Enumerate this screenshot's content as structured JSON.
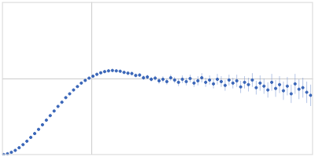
{
  "chart_data": {
    "type": "scatter",
    "x": [
      2,
      7,
      12,
      17,
      22,
      27,
      32,
      37,
      42,
      47,
      52,
      57,
      62,
      67,
      72,
      77,
      82,
      87,
      92,
      97,
      102,
      107,
      112,
      117,
      122,
      127,
      132,
      137,
      142,
      147,
      152,
      157,
      162,
      167,
      172,
      177,
      182,
      187,
      192,
      197,
      202,
      207,
      212,
      217,
      222,
      227,
      232,
      237,
      242,
      247,
      252,
      257,
      262,
      267,
      272,
      277,
      282,
      287,
      292,
      297,
      302,
      307,
      312,
      317,
      322,
      327,
      332,
      337,
      342,
      347,
      352,
      357,
      362,
      367,
      372,
      377,
      382,
      387,
      392,
      397
    ],
    "values": [
      0.5,
      1.5,
      3.5,
      6,
      9.5,
      13.5,
      18,
      23,
      28,
      33.5,
      39.5,
      45.5,
      51.5,
      57.5,
      63.5,
      69,
      75,
      80,
      85,
      89.5,
      94,
      97.5,
      100.5,
      103,
      105.5,
      107.5,
      109,
      110,
      110.5,
      110,
      109.5,
      108,
      107,
      106.5,
      104,
      104.5,
      101,
      102,
      99,
      100.5,
      97,
      99,
      96,
      101,
      98,
      95,
      99,
      96,
      100,
      94,
      97,
      101,
      95,
      98,
      93,
      99,
      96,
      91,
      98,
      94,
      97,
      89,
      95,
      92,
      98,
      88,
      94,
      90,
      85,
      95,
      87,
      92,
      84,
      90,
      80,
      93,
      86,
      88,
      82,
      78
    ],
    "errors": [
      0.5,
      0.5,
      0.5,
      0.5,
      0.5,
      0.5,
      0.5,
      0.5,
      0.5,
      0.5,
      0.5,
      0.5,
      0.5,
      0.5,
      0.5,
      0.5,
      1,
      1,
      1,
      1,
      1,
      1,
      1,
      1.5,
      1.5,
      1.5,
      1.5,
      2,
      2,
      2,
      2,
      2,
      2.5,
      2.5,
      2.5,
      2.5,
      3,
      3,
      3,
      3,
      4,
      4,
      4,
      4,
      4,
      5,
      5,
      5,
      5,
      5,
      6,
      6,
      6,
      6,
      6,
      7,
      7,
      7,
      7,
      7,
      8,
      8,
      8,
      9,
      9,
      9,
      10,
      10,
      10,
      11,
      11,
      11,
      12,
      12,
      12,
      13,
      13,
      13,
      14,
      14
    ],
    "color": "#3a66b8",
    "marker": "circle",
    "xlim": [
      0,
      400
    ],
    "ylim": [
      0,
      200
    ],
    "xticks": [
      115
    ],
    "yticks": [
      100
    ],
    "grid": true,
    "tick_labels": false
  }
}
